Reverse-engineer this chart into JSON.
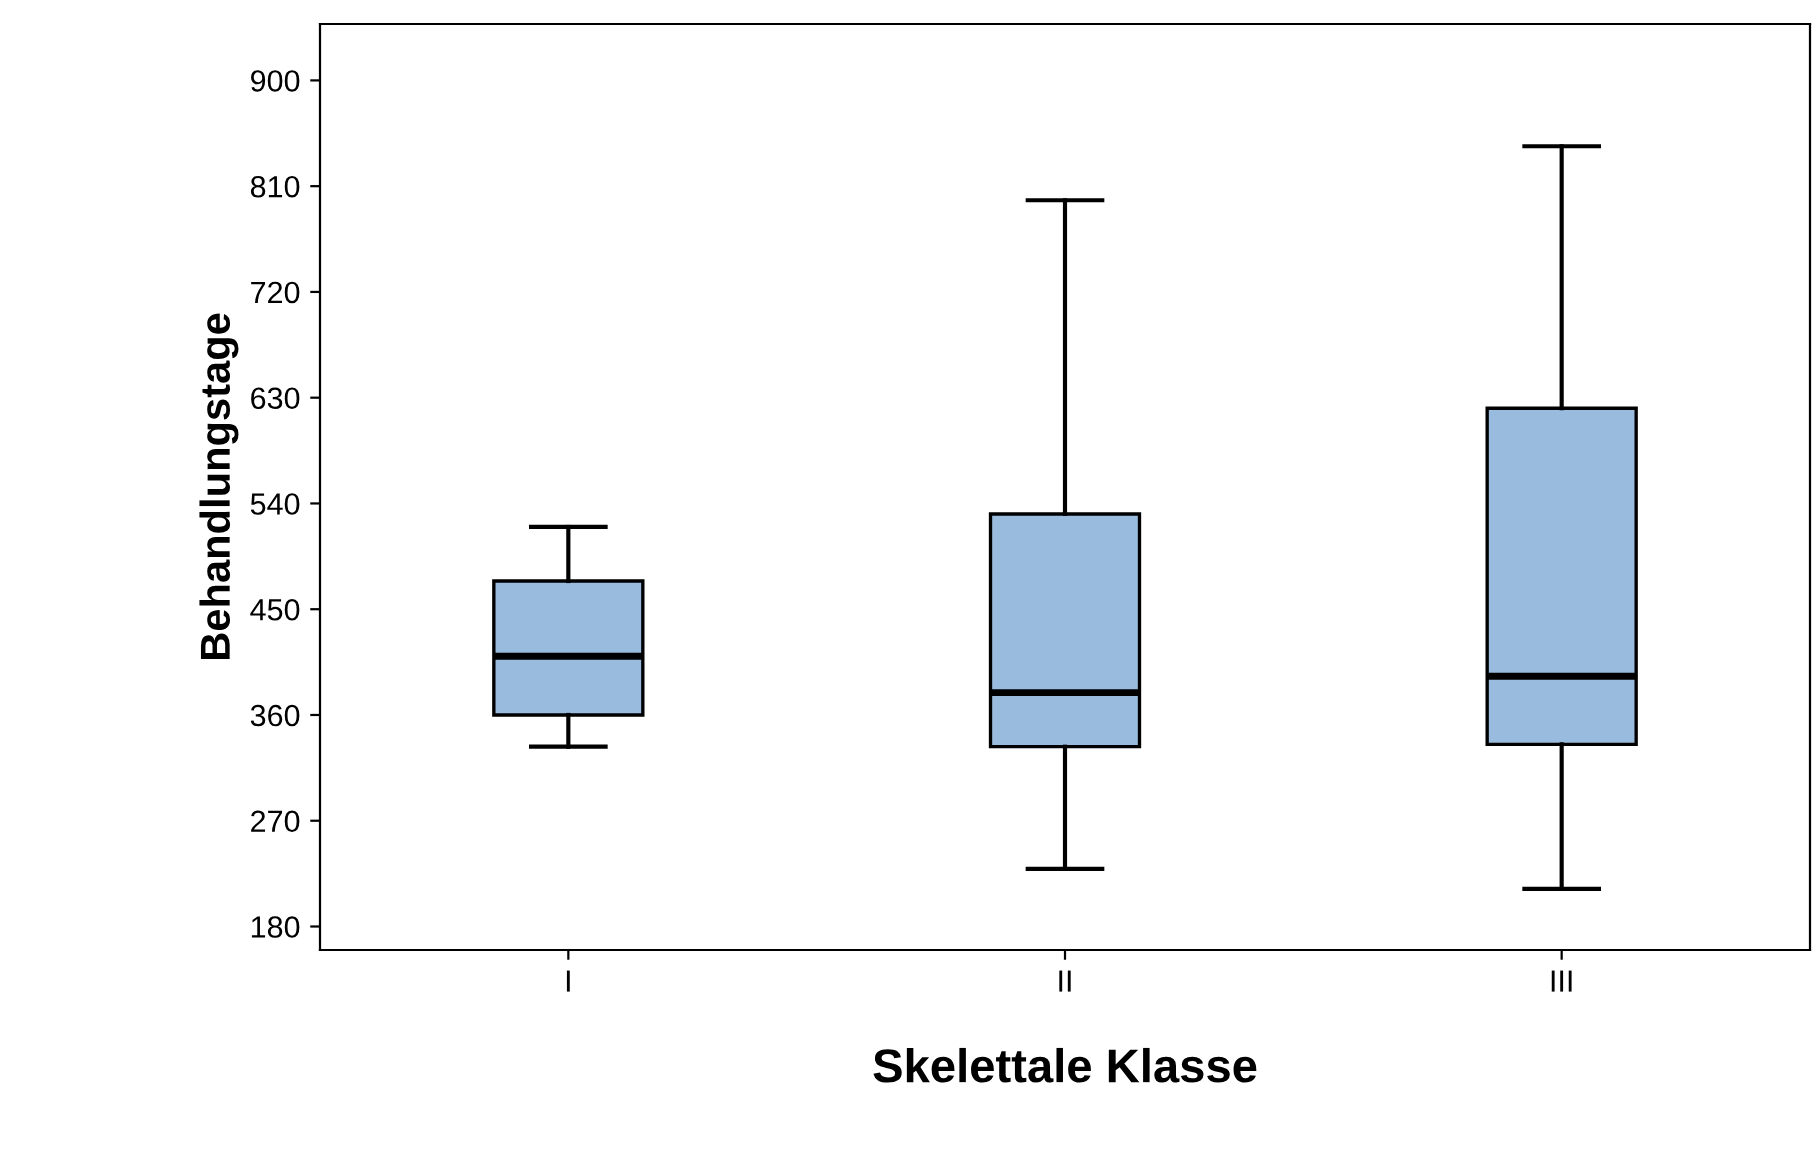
{
  "chart_data": {
    "type": "box",
    "xlabel": "Skelettale Klasse",
    "ylabel": "Behandlungstage",
    "categories": [
      "I",
      "II",
      "III"
    ],
    "boxes": [
      {
        "low": 333,
        "q1": 360,
        "median": 410,
        "q3": 474,
        "high": 520
      },
      {
        "low": 229,
        "q1": 333,
        "median": 379,
        "q3": 531,
        "high": 798
      },
      {
        "low": 212,
        "q1": 335,
        "median": 393,
        "q3": 621,
        "high": 844
      }
    ],
    "color": "#98bbde",
    "ylim": [
      160,
      948
    ],
    "yticks": [
      180,
      270,
      360,
      450,
      540,
      630,
      720,
      810,
      900
    ],
    "grid": false
  }
}
